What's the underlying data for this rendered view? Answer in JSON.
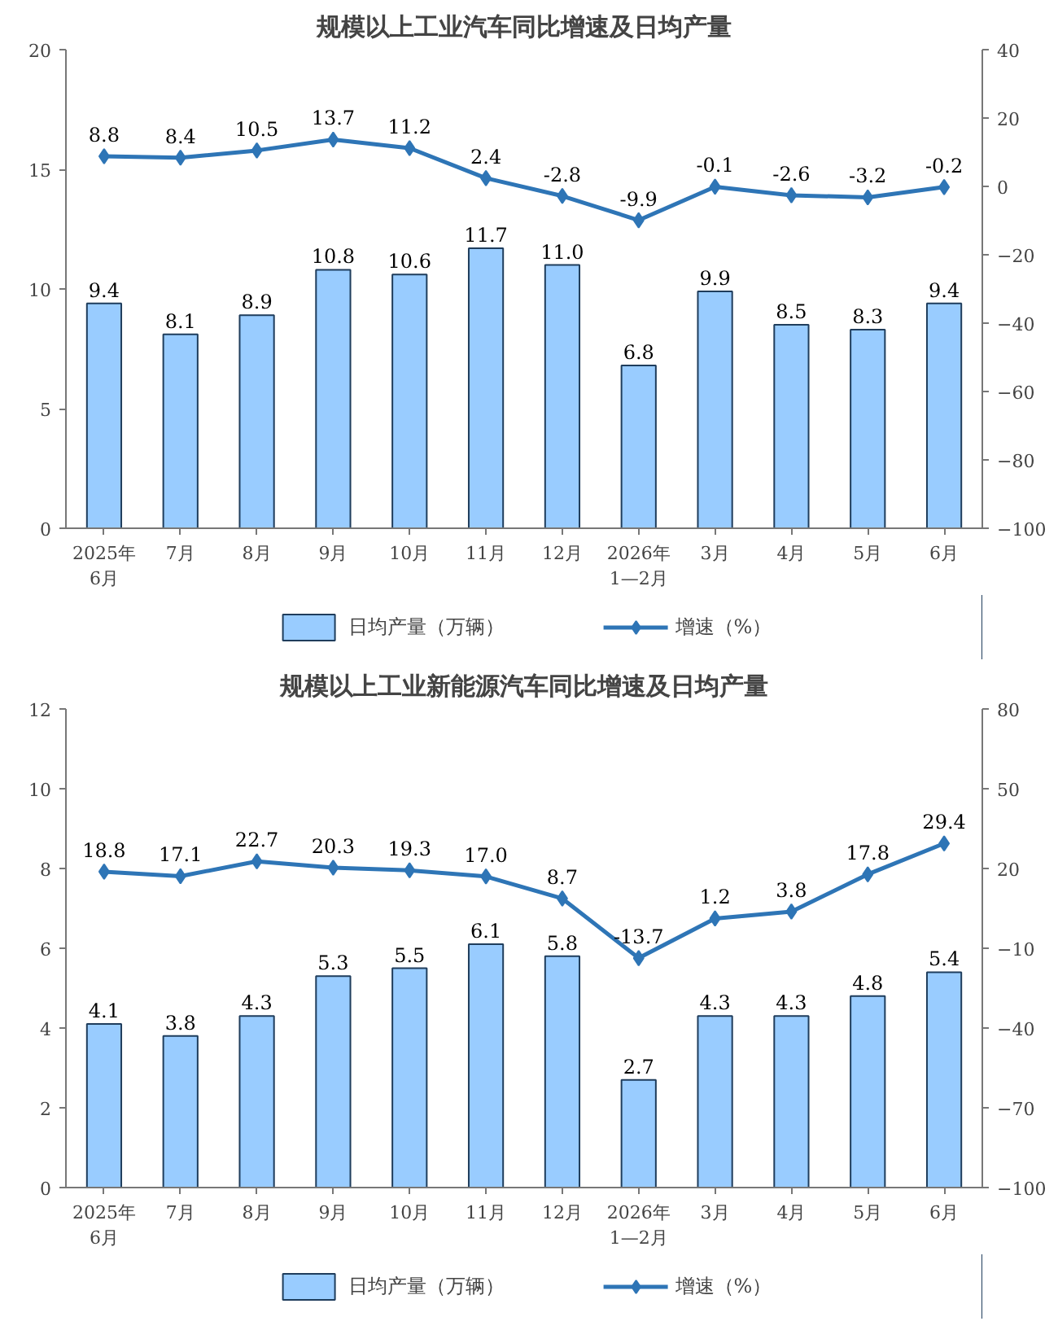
{
  "chart_data": [
    {
      "type": "bar",
      "title": "规模以上工业汽车同比增速及日均产量",
      "categories": [
        "2025年\n6月",
        "7月",
        "8月",
        "9月",
        "10月",
        "11月",
        "12月",
        "2026年\n1—2月",
        "3月",
        "4月",
        "5月",
        "6月"
      ],
      "series": [
        {
          "name": "日均产量（万辆）",
          "color": "#99ccff",
          "values": [
            9.4,
            8.1,
            8.9,
            10.8,
            10.6,
            11.7,
            11.0,
            6.8,
            9.9,
            8.5,
            8.3,
            9.4
          ],
          "value_labels": [
            "9.4",
            "8.1",
            "8.9",
            "10.8",
            "10.6",
            "11.7",
            "11.0",
            "6.8",
            "9.9",
            "8.5",
            "8.3",
            "9.4"
          ]
        },
        {
          "name": "增速（%）",
          "type": "line",
          "axis": "y2",
          "color": "#2e75b6",
          "values": [
            8.8,
            8.4,
            10.5,
            13.7,
            11.2,
            2.4,
            -2.8,
            -9.9,
            -0.1,
            -2.6,
            -3.2,
            -0.2
          ],
          "value_labels": [
            "8.8",
            "8.4",
            "10.5",
            "13.7",
            "11.2",
            "2.4",
            "-2.8",
            "-9.9",
            "-0.1",
            "-2.6",
            "-3.2",
            "-0.2"
          ]
        }
      ],
      "ylim": [
        0,
        20
      ],
      "yticks": [
        0,
        5,
        10,
        15,
        20
      ],
      "y2lim": [
        -100,
        40
      ],
      "y2ticks": [
        -100,
        -80,
        -60,
        -40,
        -20,
        0,
        20,
        40
      ],
      "marker": "diamond",
      "legend": "bottom",
      "grid": false
    },
    {
      "type": "bar",
      "title": "规模以上工业新能源汽车同比增速及日均产量",
      "categories": [
        "2025年\n6月",
        "7月",
        "8月",
        "9月",
        "10月",
        "11月",
        "12月",
        "2026年\n1—2月",
        "3月",
        "4月",
        "5月",
        "6月"
      ],
      "series": [
        {
          "name": "日均产量（万辆）",
          "color": "#99ccff",
          "values": [
            4.1,
            3.8,
            4.3,
            5.3,
            5.5,
            6.1,
            5.8,
            2.7,
            4.3,
            4.3,
            4.8,
            5.4
          ],
          "value_labels": [
            "4.1",
            "3.8",
            "4.3",
            "5.3",
            "5.5",
            "6.1",
            "5.8",
            "2.7",
            "4.3",
            "4.3",
            "4.8",
            "5.4"
          ]
        },
        {
          "name": "增速（%）",
          "type": "line",
          "axis": "y2",
          "color": "#2e75b6",
          "values": [
            18.8,
            17.1,
            22.7,
            20.3,
            19.3,
            17.0,
            8.7,
            -13.7,
            1.2,
            3.8,
            17.8,
            29.4
          ],
          "value_labels": [
            "18.8",
            "17.1",
            "22.7",
            "20.3",
            "19.3",
            "17.0",
            "8.7",
            "-13.7",
            "1.2",
            "3.8",
            "17.8",
            "29.4"
          ]
        }
      ],
      "ylim": [
        0,
        12
      ],
      "yticks": [
        0,
        2,
        4,
        6,
        8,
        10,
        12
      ],
      "y2lim": [
        -100,
        80
      ],
      "y2ticks": [
        -100,
        -70,
        -40,
        -10,
        20,
        50,
        80
      ],
      "marker": "diamond",
      "legend": "bottom",
      "grid": false
    }
  ]
}
